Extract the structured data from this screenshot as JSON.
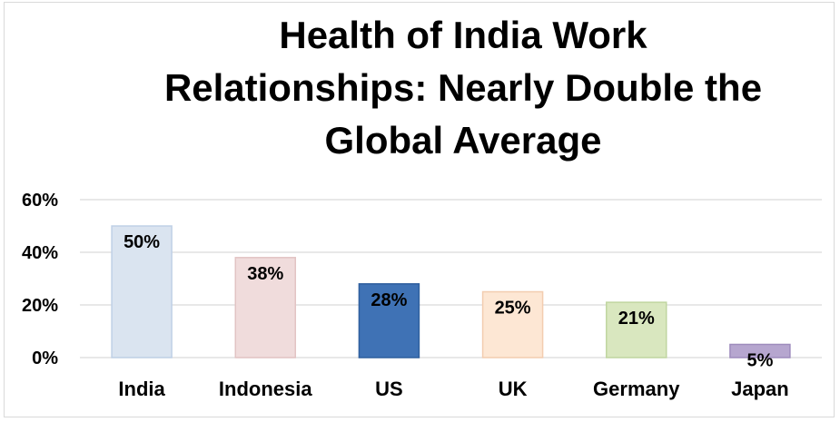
{
  "chart_data": {
    "type": "bar",
    "title_lines": [
      "Health of India Work",
      "Relationships: Nearly Double the",
      "Global Average"
    ],
    "categories": [
      "India",
      "Indonesia",
      "US",
      "UK",
      "Germany",
      "Japan"
    ],
    "values": [
      50,
      38,
      28,
      25,
      21,
      5
    ],
    "data_labels": [
      "50%",
      "38%",
      "28%",
      "25%",
      "21%",
      "5%"
    ],
    "yticks": [
      0,
      20,
      40,
      60
    ],
    "ytick_labels": [
      "0%",
      "20%",
      "40%",
      "60%"
    ],
    "ylim": [
      0,
      60
    ],
    "grid": true,
    "legend": "none",
    "colors": [
      "#dae4f0",
      "#f0dcdc",
      "#3f72b5",
      "#fde7d4",
      "#d9e7bf",
      "#b6a6cf"
    ],
    "stroke_colors": [
      "#bfd0e6",
      "#e2c4c4",
      "#2f5f9e",
      "#f3cdb0",
      "#c0d6a0",
      "#9e8cbd"
    ]
  }
}
